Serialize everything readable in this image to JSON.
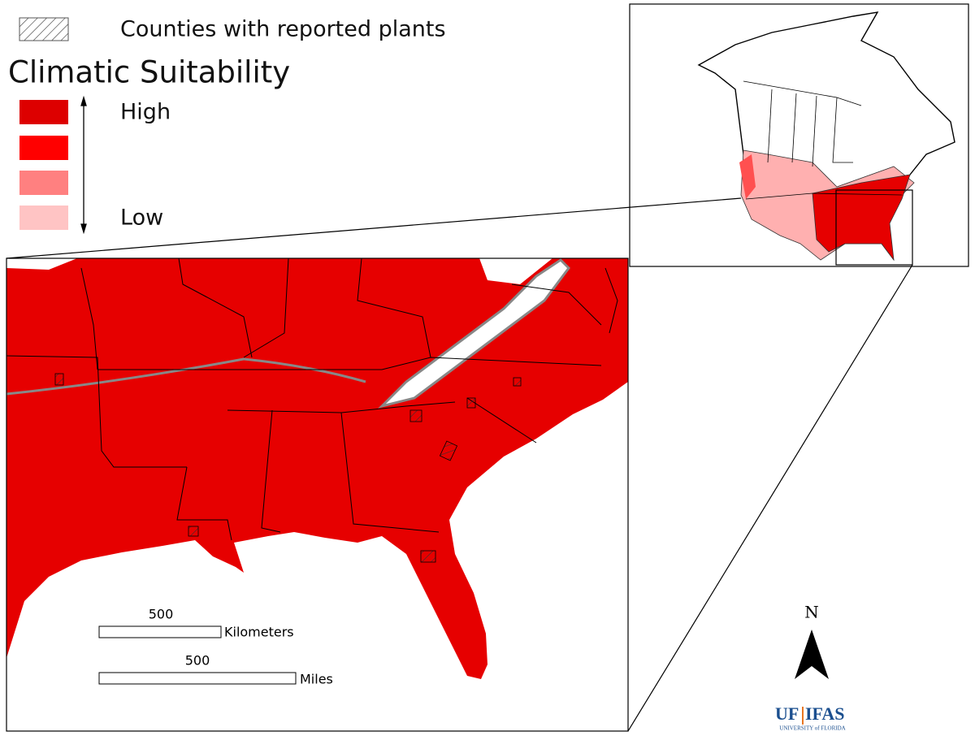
{
  "legend": {
    "hatch_label": "Counties with reported plants",
    "title": "Climatic Suitability",
    "high": "High",
    "low": "Low"
  },
  "scale_bar": {
    "km_value": "500",
    "km_unit": "Kilometers",
    "mi_value": "500",
    "mi_unit": "Miles"
  },
  "north_arrow": "N",
  "logo": {
    "left": "UF",
    "right": "IFAS",
    "sub": "UNIVERSITY of FLORIDA"
  }
}
